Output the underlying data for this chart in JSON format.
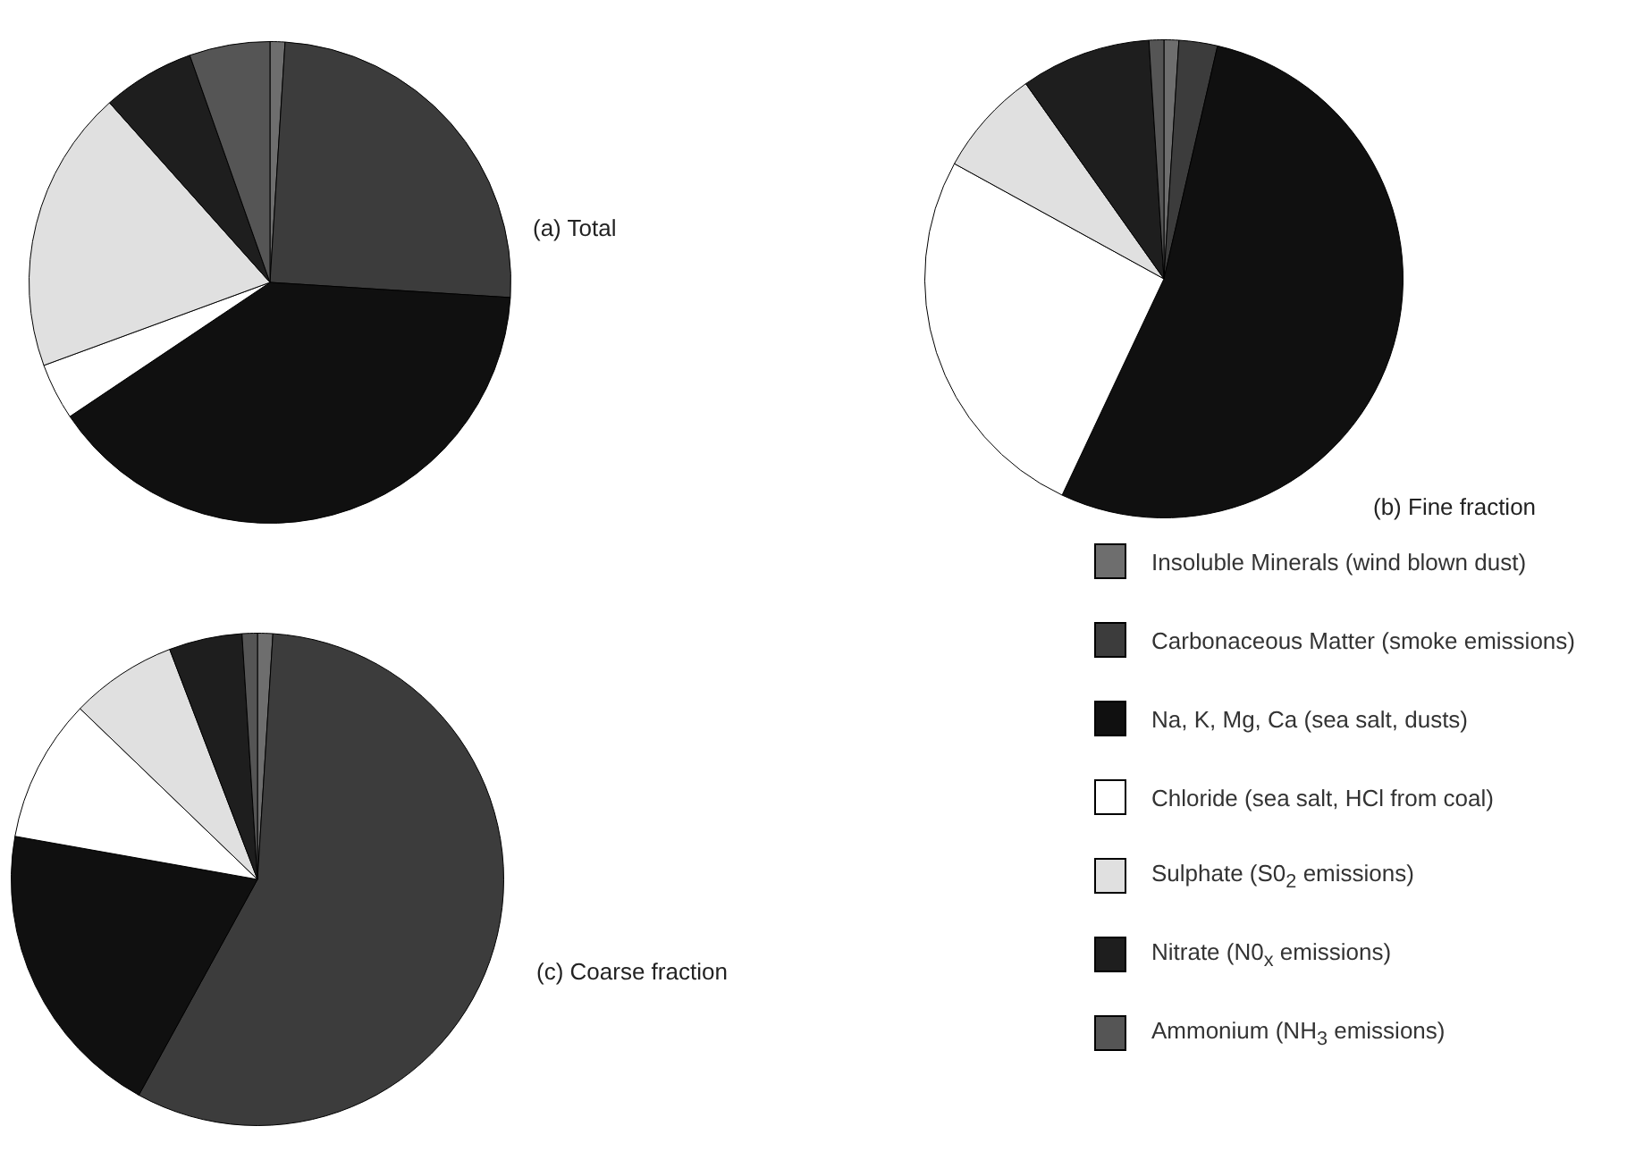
{
  "chart_data": [
    {
      "type": "pie",
      "title": "(a) Total",
      "categories": [
        null,
        null,
        null,
        null,
        null,
        null,
        null
      ],
      "values": [
        1,
        25,
        39.6,
        3.8,
        19,
        6.2,
        5.4
      ],
      "colors": [
        "#6e6e6e",
        "#3c3c3c",
        "#101010",
        "#ffffff",
        "#e0e0e0",
        "#1e1e1e",
        "#555555"
      ]
    },
    {
      "type": "pie",
      "title": "(b) Fine fraction",
      "categories": [
        null,
        null,
        null,
        null,
        null,
        null,
        null
      ],
      "values": [
        1,
        2.6,
        53.4,
        26,
        7.2,
        8.8,
        1
      ],
      "colors": [
        "#6e6e6e",
        "#3c3c3c",
        "#101010",
        "#ffffff",
        "#e0e0e0",
        "#1e1e1e",
        "#555555"
      ]
    },
    {
      "type": "pie",
      "title": "(c) Coarse fraction",
      "categories": [
        "Insoluble Minerals (wind blown dust)",
        "Carbonaceous Matter (smoke emissions)",
        "Na, K, Mg, Ca (sea salt, dusts)",
        "Chloride (sea salt, HCl from coal)",
        "Sulphate (S0$_{2}$ emissions)",
        "Nitrate (N0$_{x}$ emissions)",
        "Ammonium (NH$_{3}$ emissions)"
      ],
      "values": [
        1,
        57,
        19.8,
        9.4,
        7,
        4.8,
        1
      ],
      "colors": [
        "#6e6e6e",
        "#3c3c3c",
        "#101010",
        "#ffffff",
        "#e0e0e0",
        "#1e1e1e",
        "#555555"
      ],
      "legend": "right"
    }
  ]
}
